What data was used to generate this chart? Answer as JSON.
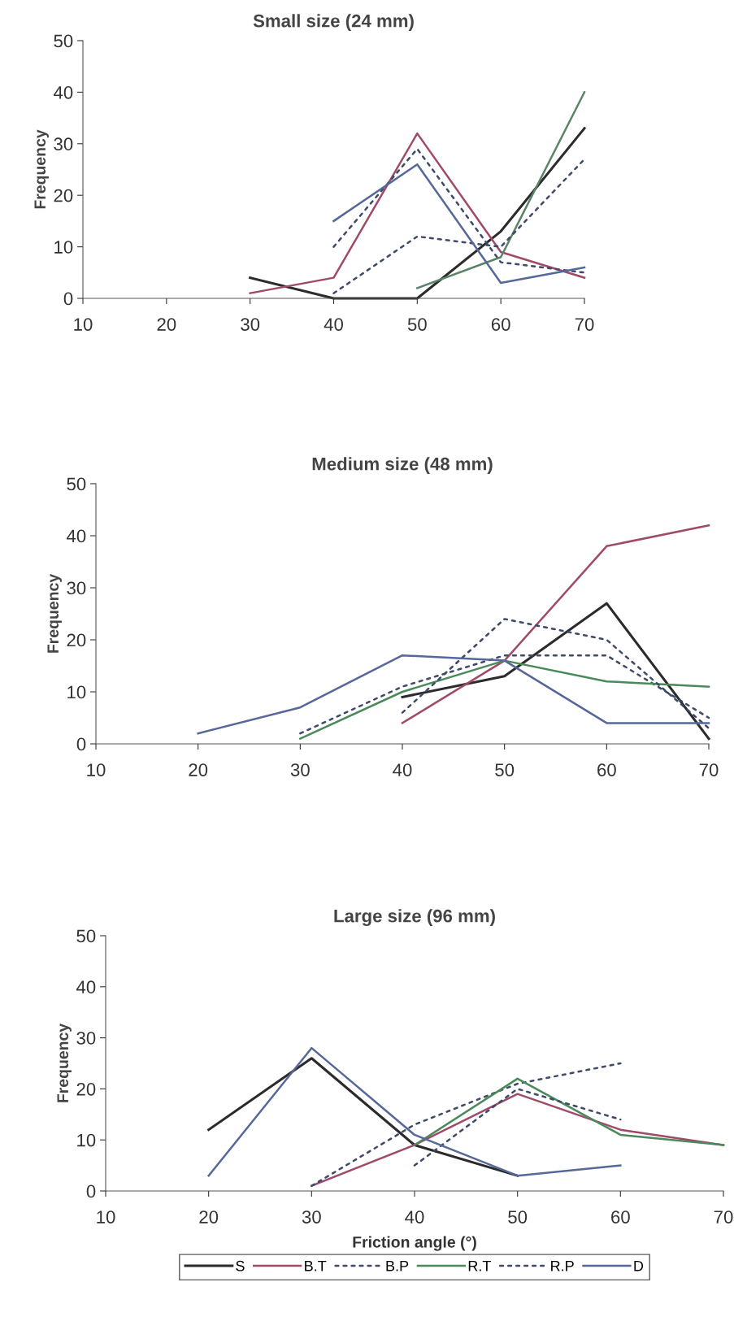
{
  "chart_data": [
    {
      "type": "line",
      "title": "Small size (24 mm)",
      "ylabel": "Frequency",
      "xlim": [
        10,
        70
      ],
      "xticks": [
        10,
        20,
        30,
        40,
        50,
        60,
        70
      ],
      "ylim": [
        0,
        50
      ],
      "yticks": [
        0,
        10,
        20,
        30,
        40,
        50
      ],
      "grid": false,
      "marker": "none",
      "series": [
        {
          "color": "#2b2b2b",
          "line_style": "solid",
          "x": [
            30,
            40,
            50,
            60,
            70
          ],
          "values": [
            4,
            0,
            0,
            13,
            33
          ]
        },
        {
          "color": "#a04a6a",
          "line_style": "solid",
          "x": [
            30,
            40,
            50,
            60,
            70
          ],
          "values": [
            1,
            4,
            32,
            9,
            4
          ]
        },
        {
          "color": "#3e4a68",
          "line_style": "dotted",
          "x": [
            40,
            50,
            60,
            70
          ],
          "values": [
            10,
            29,
            7,
            5
          ]
        },
        {
          "color": "#5a8468",
          "line_style": "solid",
          "x": [
            50,
            60,
            70
          ],
          "values": [
            2,
            8,
            40
          ]
        },
        {
          "color": "#3e4a68",
          "line_style": "dotted",
          "x": [
            40,
            50,
            60,
            70
          ],
          "values": [
            1,
            12,
            10,
            27
          ]
        },
        {
          "color": "#56689a",
          "line_style": "solid",
          "x": [
            40,
            50,
            60,
            70
          ],
          "values": [
            15,
            26,
            3,
            6
          ]
        }
      ]
    },
    {
      "type": "line",
      "title": "Medium size (48 mm)",
      "ylabel": "Frequency",
      "xlim": [
        10,
        70
      ],
      "xticks": [
        10,
        20,
        30,
        40,
        50,
        60,
        70
      ],
      "ylim": [
        0,
        50
      ],
      "yticks": [
        0,
        10,
        20,
        30,
        40,
        50
      ],
      "grid": false,
      "marker": "none",
      "series": [
        {
          "color": "#2b2b2b",
          "line_style": "solid",
          "x": [
            40,
            50,
            60,
            70
          ],
          "values": [
            9,
            13,
            27,
            1
          ]
        },
        {
          "color": "#a04a6a",
          "line_style": "solid",
          "x": [
            40,
            50,
            60,
            70
          ],
          "values": [
            4,
            16,
            38,
            42
          ]
        },
        {
          "color": "#3e4a68",
          "line_style": "dotted",
          "x": [
            30,
            40,
            50,
            60,
            70
          ],
          "values": [
            2,
            11,
            17,
            17,
            5
          ]
        },
        {
          "color": "#4a8a5a",
          "line_style": "solid",
          "x": [
            30,
            40,
            50,
            60,
            70
          ],
          "values": [
            1,
            10,
            16,
            12,
            11
          ]
        },
        {
          "color": "#3e4a68",
          "line_style": "dotted",
          "x": [
            40,
            50,
            60,
            70
          ],
          "values": [
            6,
            24,
            20,
            3
          ]
        },
        {
          "color": "#56689a",
          "line_style": "solid",
          "x": [
            20,
            30,
            40,
            50,
            60,
            70
          ],
          "values": [
            2,
            7,
            17,
            16,
            4,
            4
          ]
        }
      ]
    },
    {
      "type": "line",
      "title": "Large size (96 mm)",
      "xlabel": "Friction angle (°)",
      "ylabel": "Frequency",
      "xlim": [
        10,
        70
      ],
      "xticks": [
        10,
        20,
        30,
        40,
        50,
        60,
        70
      ],
      "ylim": [
        0,
        50
      ],
      "yticks": [
        0,
        10,
        20,
        30,
        40,
        50
      ],
      "grid": false,
      "legend": "bottom",
      "marker": "none",
      "series": [
        {
          "name": "S",
          "color": "#2b2b2b",
          "line_style": "solid",
          "x": [
            20,
            30,
            40,
            50
          ],
          "values": [
            12,
            26,
            9,
            3
          ]
        },
        {
          "name": "B.T",
          "color": "#a04a6a",
          "line_style": "solid",
          "x": [
            30,
            40,
            50,
            60,
            70
          ],
          "values": [
            1,
            9,
            19,
            12,
            9
          ]
        },
        {
          "name": "B.P",
          "color": "#3e4a68",
          "line_style": "dotted",
          "x": [
            30,
            40,
            50,
            60
          ],
          "values": [
            1,
            13,
            21,
            25
          ]
        },
        {
          "name": "R.T",
          "color": "#4a8a5a",
          "line_style": "solid",
          "x": [
            40,
            50,
            60,
            70
          ],
          "values": [
            9,
            22,
            11,
            9
          ]
        },
        {
          "name": "R.P",
          "color": "#3e4a68",
          "line_style": "dotted",
          "x": [
            40,
            50,
            60
          ],
          "values": [
            5,
            20,
            14
          ]
        },
        {
          "name": "D",
          "color": "#56689a",
          "line_style": "solid",
          "x": [
            20,
            30,
            40,
            50,
            60
          ],
          "values": [
            3,
            28,
            11,
            3,
            5
          ]
        }
      ]
    }
  ]
}
